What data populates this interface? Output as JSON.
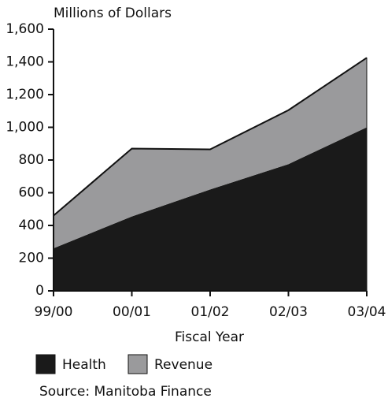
{
  "chart_data": {
    "type": "stacked-area",
    "title": "Millions of Dollars",
    "x_label": "Fiscal Year",
    "source": "Source:  Manitoba Finance",
    "categories": [
      "99/00",
      "00/01",
      "01/02",
      "02/03",
      "03/04"
    ],
    "series": [
      {
        "name": "Health",
        "color": "#1a1a1a",
        "values": [
          260,
          455,
          620,
          775,
          1000
        ]
      },
      {
        "name": "Revenue",
        "color": "#9a9a9c",
        "values": [
          200,
          415,
          245,
          330,
          425
        ]
      }
    ],
    "ylim": [
      0,
      1600
    ],
    "yticks": [
      0,
      200,
      400,
      600,
      800,
      {
        "value": 1000,
        "label": "1,000"
      },
      {
        "value": 1200,
        "label": "1,200"
      },
      {
        "value": 1400,
        "label": "1,400"
      },
      {
        "value": 1600,
        "label": "1,600"
      }
    ]
  }
}
